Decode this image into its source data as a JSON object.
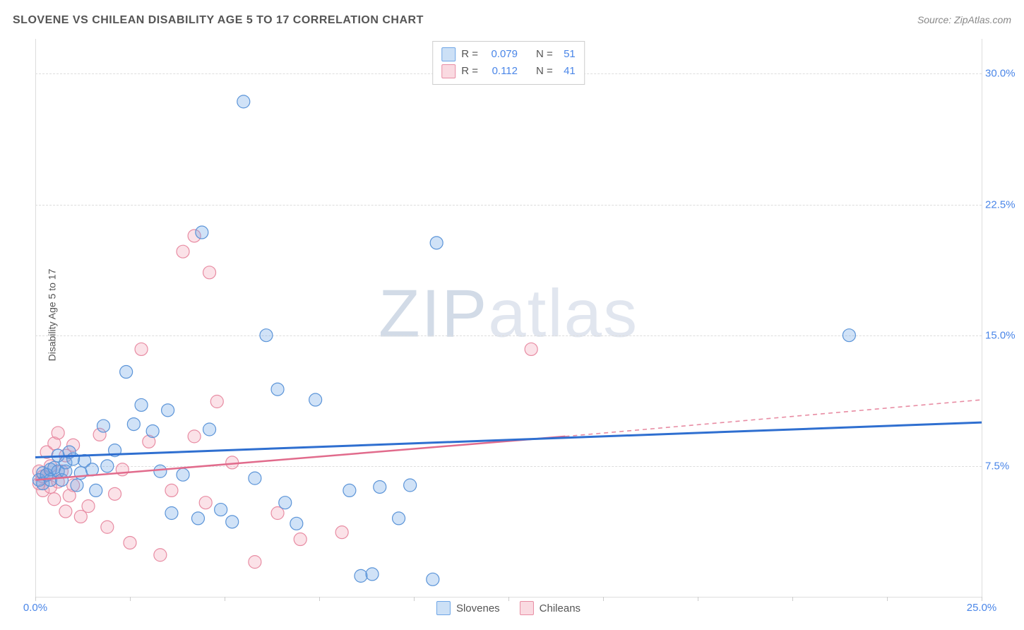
{
  "title": "SLOVENE VS CHILEAN DISABILITY AGE 5 TO 17 CORRELATION CHART",
  "source": "Source: ZipAtlas.com",
  "y_axis_label": "Disability Age 5 to 17",
  "watermark_left": "ZIP",
  "watermark_right": "atlas",
  "chart": {
    "type": "scatter",
    "xlim": [
      0,
      25
    ],
    "ylim": [
      0,
      32
    ],
    "x_ticks": [
      0,
      2.5,
      5,
      7.5,
      10,
      12.5,
      15,
      17.5,
      20,
      22.5,
      25
    ],
    "x_tick_labels_shown": {
      "0": "0.0%",
      "25": "25.0%"
    },
    "y_ticks": [
      7.5,
      15.0,
      22.5,
      30.0
    ],
    "y_tick_labels": [
      "7.5%",
      "15.0%",
      "22.5%",
      "30.0%"
    ],
    "grid_color": "#dddddd",
    "background_color": "#ffffff",
    "axis_label_color": "#4a86e8",
    "axis_text_color": "#555555",
    "marker_radius": 9,
    "marker_stroke_width": 1.2,
    "marker_fill_opacity": 0.32,
    "series_blue": {
      "label": "Slovenes",
      "fill": "#6ea5e6",
      "stroke": "#5b94d8",
      "R": "0.079",
      "N": "51",
      "trend": {
        "x1": 0,
        "y1": 8.0,
        "x2": 25,
        "y2": 10.0,
        "color": "#2f6fd0",
        "width": 3,
        "dash": ""
      },
      "points": [
        [
          0.1,
          6.7
        ],
        [
          0.2,
          7.1
        ],
        [
          0.2,
          6.5
        ],
        [
          0.3,
          7.0
        ],
        [
          0.4,
          6.7
        ],
        [
          0.4,
          7.3
        ],
        [
          0.5,
          7.4
        ],
        [
          0.6,
          7.2
        ],
        [
          0.6,
          8.1
        ],
        [
          0.7,
          6.7
        ],
        [
          0.8,
          7.2
        ],
        [
          0.8,
          7.7
        ],
        [
          0.9,
          8.3
        ],
        [
          1.0,
          7.9
        ],
        [
          1.1,
          6.4
        ],
        [
          1.2,
          7.1
        ],
        [
          1.3,
          7.8
        ],
        [
          1.5,
          7.3
        ],
        [
          1.6,
          6.1
        ],
        [
          1.8,
          9.8
        ],
        [
          1.9,
          7.5
        ],
        [
          2.1,
          8.4
        ],
        [
          2.4,
          12.9
        ],
        [
          2.6,
          9.9
        ],
        [
          2.8,
          11.0
        ],
        [
          3.1,
          9.5
        ],
        [
          3.3,
          7.2
        ],
        [
          3.5,
          10.7
        ],
        [
          3.6,
          4.8
        ],
        [
          3.9,
          7.0
        ],
        [
          4.3,
          4.5
        ],
        [
          4.4,
          20.9
        ],
        [
          4.6,
          9.6
        ],
        [
          4.9,
          5.0
        ],
        [
          5.2,
          4.3
        ],
        [
          5.5,
          28.4
        ],
        [
          5.8,
          6.8
        ],
        [
          6.1,
          15.0
        ],
        [
          6.4,
          11.9
        ],
        [
          6.6,
          5.4
        ],
        [
          6.9,
          4.2
        ],
        [
          7.4,
          11.3
        ],
        [
          8.3,
          6.1
        ],
        [
          8.6,
          1.2
        ],
        [
          8.9,
          1.3
        ],
        [
          9.1,
          6.3
        ],
        [
          9.6,
          4.5
        ],
        [
          9.9,
          6.4
        ],
        [
          10.5,
          1.0
        ],
        [
          10.6,
          20.3
        ],
        [
          21.5,
          15.0
        ]
      ]
    },
    "series_pink": {
      "label": "Chileans",
      "fill": "#f3a6b8",
      "stroke": "#e88ca3",
      "R": "0.112",
      "N": "41",
      "trend_solid": {
        "x1": 0,
        "y1": 6.7,
        "x2": 14,
        "y2": 9.2,
        "color": "#e16b8c",
        "width": 2.5
      },
      "trend_dashed": {
        "x1": 14,
        "y1": 9.2,
        "x2": 25,
        "y2": 11.3,
        "color": "#e88ca3",
        "width": 1.6,
        "dash": "6 5"
      },
      "points": [
        [
          0.1,
          6.5
        ],
        [
          0.1,
          7.2
        ],
        [
          0.2,
          6.9
        ],
        [
          0.2,
          6.1
        ],
        [
          0.3,
          8.3
        ],
        [
          0.3,
          7.0
        ],
        [
          0.4,
          6.3
        ],
        [
          0.4,
          7.5
        ],
        [
          0.5,
          5.6
        ],
        [
          0.5,
          8.8
        ],
        [
          0.6,
          6.6
        ],
        [
          0.6,
          9.4
        ],
        [
          0.7,
          7.2
        ],
        [
          0.8,
          4.9
        ],
        [
          0.8,
          8.1
        ],
        [
          0.9,
          5.8
        ],
        [
          1.0,
          6.4
        ],
        [
          1.0,
          8.7
        ],
        [
          1.2,
          4.6
        ],
        [
          1.4,
          5.2
        ],
        [
          1.7,
          9.3
        ],
        [
          1.9,
          4.0
        ],
        [
          2.1,
          5.9
        ],
        [
          2.3,
          7.3
        ],
        [
          2.5,
          3.1
        ],
        [
          2.8,
          14.2
        ],
        [
          3.0,
          8.9
        ],
        [
          3.3,
          2.4
        ],
        [
          3.6,
          6.1
        ],
        [
          3.9,
          19.8
        ],
        [
          4.2,
          9.2
        ],
        [
          4.2,
          20.7
        ],
        [
          4.5,
          5.4
        ],
        [
          4.6,
          18.6
        ],
        [
          4.8,
          11.2
        ],
        [
          5.2,
          7.7
        ],
        [
          5.8,
          2.0
        ],
        [
          6.4,
          4.8
        ],
        [
          7.0,
          3.3
        ],
        [
          8.1,
          3.7
        ],
        [
          13.1,
          14.2
        ]
      ]
    },
    "stats_labels": {
      "R": "R =",
      "N": "N ="
    },
    "bottom_legend": [
      "Slovenes",
      "Chileans"
    ]
  }
}
